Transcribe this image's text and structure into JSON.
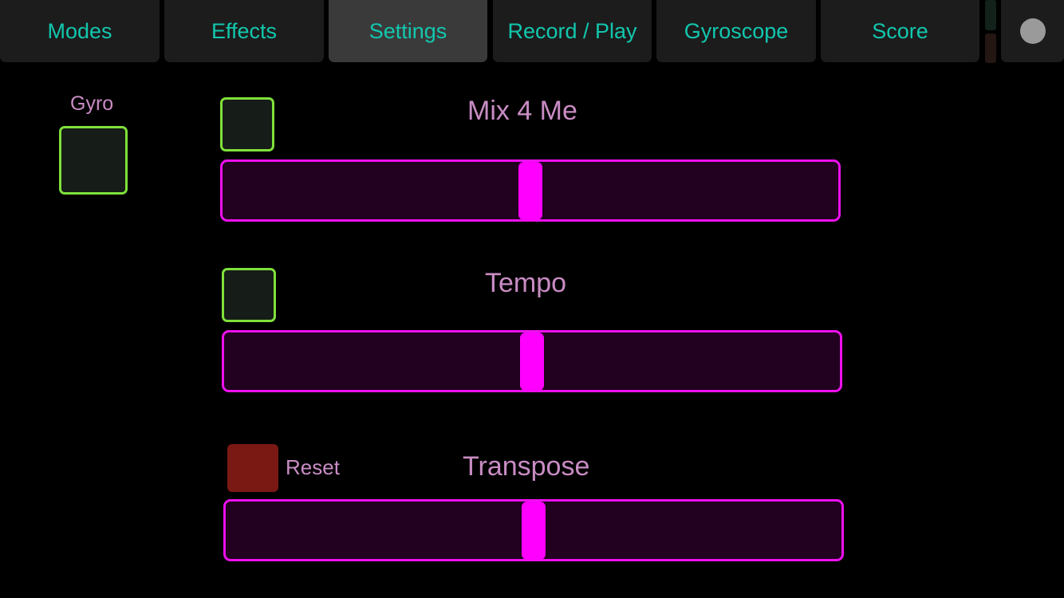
{
  "tabs": [
    {
      "label": "Modes",
      "active": false
    },
    {
      "label": "Effects",
      "active": false
    },
    {
      "label": "Settings",
      "active": true
    },
    {
      "label": "Record / Play",
      "active": false
    },
    {
      "label": "Gyroscope",
      "active": false
    },
    {
      "label": "Score",
      "active": false
    }
  ],
  "colors": {
    "tab_text": "#12c7ae",
    "label_text": "#c98cc4",
    "toggle_border": "#7fe03a",
    "slider_accent": "#ff00ff",
    "reset_button": "#7a1914",
    "record_dot": "#9a9a9a"
  },
  "icons": {
    "record": "record-dot-icon"
  },
  "gyro": {
    "label": "Gyro",
    "checked": false
  },
  "sliders": {
    "mix": {
      "label": "Mix 4 Me",
      "value": 0.5,
      "toggle_checked": false
    },
    "tempo": {
      "label": "Tempo",
      "value": 0.5,
      "toggle_checked": false
    },
    "transpose": {
      "label": "Transpose",
      "value": 0.5,
      "reset_label": "Reset"
    }
  }
}
